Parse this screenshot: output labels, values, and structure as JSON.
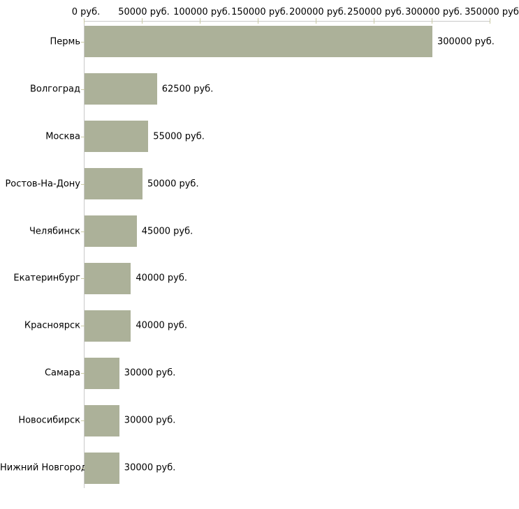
{
  "chart_data": {
    "type": "bar",
    "orientation": "horizontal",
    "title": "",
    "xlabel": "",
    "ylabel": "",
    "categories": [
      "Пермь",
      "Волгоград",
      "Москва",
      "Ростов-На-Дону",
      "Челябинск",
      "Екатеринбург",
      "Красноярск",
      "Самара",
      "Новосибирск",
      "Нижний Новгород"
    ],
    "values": [
      300000,
      62500,
      55000,
      50000,
      45000,
      40000,
      40000,
      30000,
      30000,
      30000
    ],
    "value_labels": [
      "300000 руб.",
      "62500 руб.",
      "55000 руб.",
      "50000 руб.",
      "45000 руб.",
      "40000 руб.",
      "40000 руб.",
      "30000 руб.",
      "30000 руб.",
      "30000 руб."
    ],
    "x_axis": {
      "position": "top",
      "tick_values": [
        0,
        50000,
        100000,
        150000,
        200000,
        250000,
        300000,
        350000
      ],
      "tick_labels": [
        "0 руб.",
        "50000 руб.",
        "100000 руб.",
        "150000 руб.",
        "200000 руб.",
        "250000 руб.",
        "300000 руб.",
        "350000 руб"
      ],
      "min": 0,
      "max": 350000
    },
    "grid": false,
    "legend": false,
    "colors": {
      "bar_fill": "#acb199",
      "axis_line": "#c9c9c9",
      "tick_mark": "#c9c9a3",
      "text": "#000000",
      "background": "#ffffff"
    }
  }
}
